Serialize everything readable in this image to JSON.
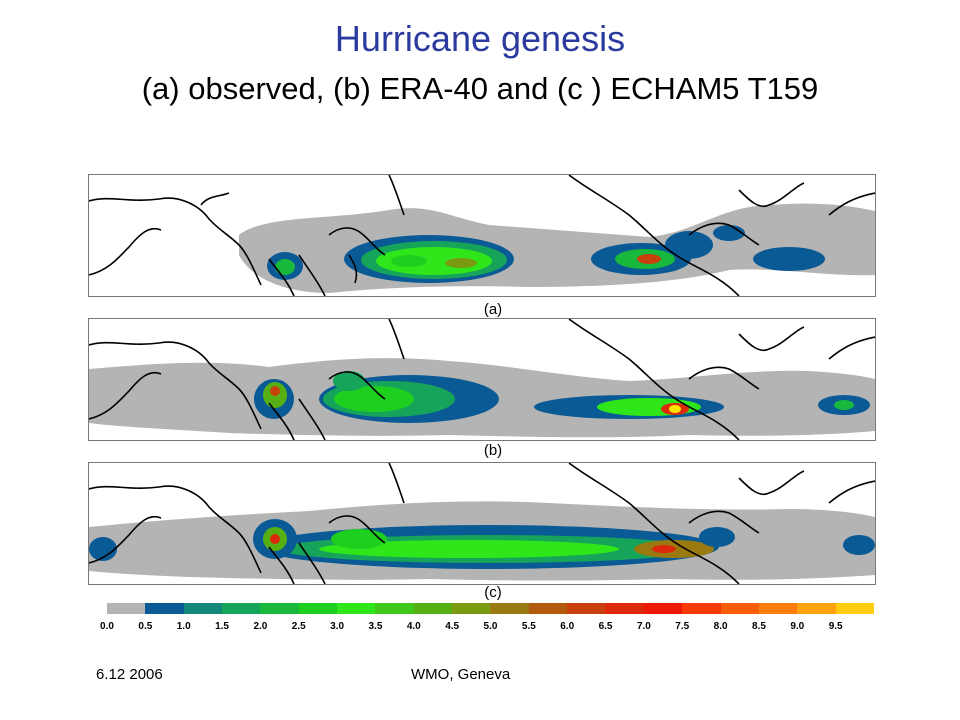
{
  "slide": {
    "title": "Hurricane genesis",
    "subtitle": "(a) observed,  (b) ERA-40 and (c ) ECHAM5 T159"
  },
  "panels": [
    {
      "label": "(a)"
    },
    {
      "label": "(b)"
    },
    {
      "label": "(c)"
    }
  ],
  "colorbar": {
    "ticks": [
      "0.0",
      "0.5",
      "1.0",
      "1.5",
      "2.0",
      "2.5",
      "3.0",
      "3.5",
      "4.0",
      "4.5",
      "5.0",
      "5.5",
      "6.0",
      "6.5",
      "7.0",
      "7.5",
      "8.0",
      "8.5",
      "9.0",
      "9.5"
    ],
    "colors": [
      "#b4b4b4",
      "#0a5a96",
      "#13877a",
      "#16a45a",
      "#18b83c",
      "#1ecf20",
      "#2ee61a",
      "#3fc81a",
      "#56b014",
      "#7a9a12",
      "#9a7a10",
      "#b25a0e",
      "#c8400c",
      "#dc2a0a",
      "#ee1a08",
      "#f83a08",
      "#fb5c0a",
      "#fc7c0c",
      "#fea210",
      "#ffcc10"
    ]
  },
  "footer": {
    "date": "6.12 2006",
    "venue": "WMO, Geneva"
  }
}
